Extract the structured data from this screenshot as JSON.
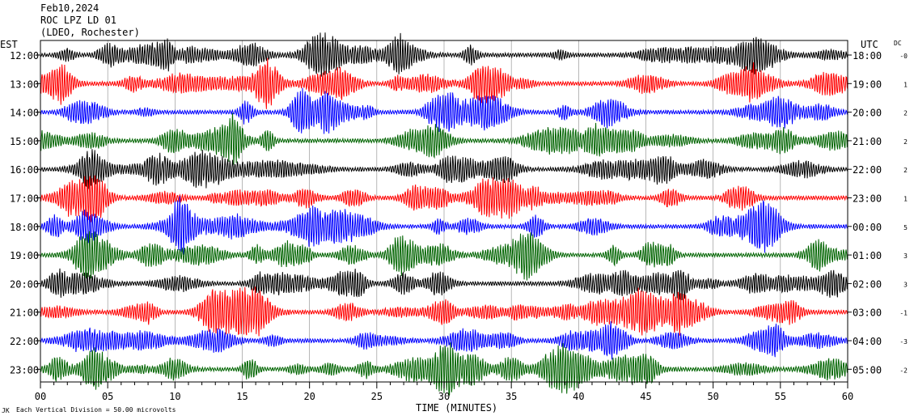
{
  "header": {
    "date": "Feb10,2024",
    "station": "ROC LPZ LD 01",
    "network": "(LDEO, Rochester)"
  },
  "footer": {
    "scale_note": "Each Vertical Division =   50.00 microvolts",
    "scale_mark": "JK"
  },
  "chart_data": {
    "type": "line",
    "title": "",
    "xlabel": "TIME (MINUTES)",
    "ylabel_left": "EST",
    "ylabel_right": "UTC",
    "dc_label": "DC",
    "xlim": [
      0,
      60
    ],
    "x_ticks": [
      "00",
      "05",
      "10",
      "15",
      "20",
      "25",
      "30",
      "35",
      "40",
      "45",
      "50",
      "55",
      "60"
    ],
    "grid_x": true,
    "trace_colors": [
      "#000000",
      "#ff0000",
      "#0000ff",
      "#006400"
    ],
    "rows": [
      {
        "est": "12:00",
        "utc": "18:00",
        "dc": "-0"
      },
      {
        "est": "13:00",
        "utc": "19:00",
        "dc": "1"
      },
      {
        "est": "14:00",
        "utc": "20:00",
        "dc": "2"
      },
      {
        "est": "15:00",
        "utc": "21:00",
        "dc": "2"
      },
      {
        "est": "16:00",
        "utc": "22:00",
        "dc": "2"
      },
      {
        "est": "17:00",
        "utc": "23:00",
        "dc": "1"
      },
      {
        "est": "18:00",
        "utc": "00:00",
        "dc": "5"
      },
      {
        "est": "19:00",
        "utc": "01:00",
        "dc": "3"
      },
      {
        "est": "20:00",
        "utc": "02:00",
        "dc": "3"
      },
      {
        "est": "21:00",
        "utc": "03:00",
        "dc": "-1"
      },
      {
        "est": "22:00",
        "utc": "04:00",
        "dc": "-3"
      },
      {
        "est": "23:00",
        "utc": "05:00",
        "dc": "-2"
      }
    ]
  }
}
